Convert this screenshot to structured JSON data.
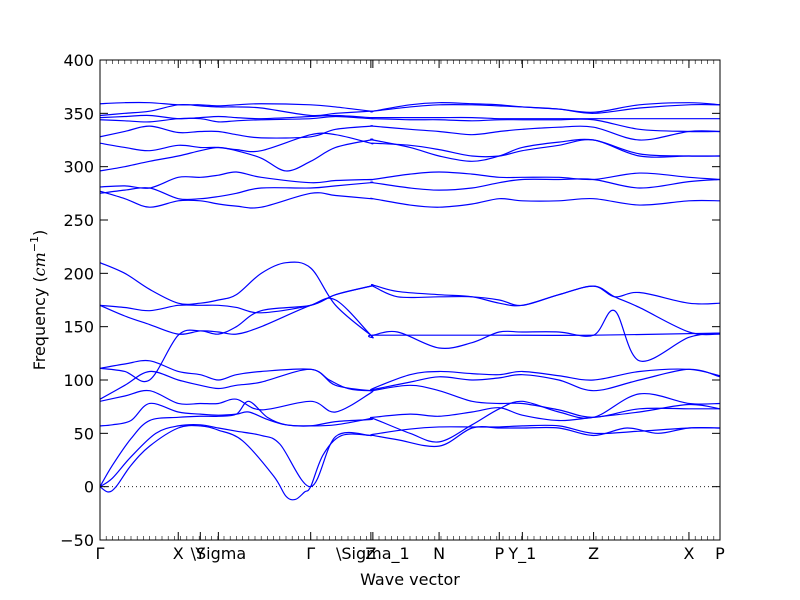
{
  "chart_data": {
    "type": "line",
    "title": "",
    "xlabel": "Wave vector",
    "ylabel_text": "Frequency (",
    "ylabel_unit": "cm",
    "ylabel_exp": "−1",
    "ylabel_close": ")",
    "ylim": [
      -50,
      400
    ],
    "yticks": [
      -50,
      0,
      50,
      100,
      150,
      200,
      250,
      300,
      350,
      400
    ],
    "xlim": [
      0,
      1
    ],
    "high_symmetry_points": [
      {
        "label": "Γ",
        "x": 0.0
      },
      {
        "label": "X",
        "x": 0.1262
      },
      {
        "label": "Y",
        "x": 0.1618
      },
      {
        "label": "\\Sigma",
        "x": 0.1909
      },
      {
        "label": "Γ",
        "x": 0.3398
      },
      {
        "label": "Z",
        "x": 0.4369
      },
      {
        "label": "\\Sigma_1",
        "x": 0.4401
      },
      {
        "label": "N",
        "x": 0.5469
      },
      {
        "label": "P",
        "x": 0.644
      },
      {
        "label": "Y_1",
        "x": 0.6812
      },
      {
        "label": "Z",
        "x": 0.7961
      },
      {
        "label": "X",
        "x": 0.9499
      },
      {
        "label": "P",
        "x": 1.0
      }
    ],
    "minor_tick_count": 100,
    "zero_line": {
      "y": 0,
      "style": "dotted"
    },
    "line_color": "#0000ff",
    "series": [
      {
        "x": [
          0,
          0.013,
          0.026,
          0.05,
          0.08,
          0.1262,
          0.1618,
          0.1909,
          0.23,
          0.28,
          0.3,
          0.315,
          0.33,
          0.3398,
          0.36,
          0.39,
          0.4369,
          0.4401,
          0.48,
          0.5469,
          0.6,
          0.644,
          0.6812,
          0.74,
          0.7961,
          0.85,
          0.9,
          0.9499,
          1.0
        ],
        "y": [
          0,
          -5,
          0,
          20,
          38,
          55,
          57,
          53,
          43,
          10,
          -9,
          -12,
          -5,
          0,
          30,
          48,
          48,
          48,
          44,
          38,
          55,
          55,
          55,
          55,
          48,
          55,
          50,
          55,
          55
        ]
      },
      {
        "x": [
          0,
          0.02,
          0.05,
          0.09,
          0.1262,
          0.1618,
          0.1909,
          0.22,
          0.26,
          0.29,
          0.3398,
          0.38,
          0.4369,
          0.4401,
          0.5,
          0.5469,
          0.6,
          0.644,
          0.6812,
          0.74,
          0.7961,
          0.87,
          0.9499,
          1.0
        ],
        "y": [
          0,
          8,
          28,
          50,
          57,
          58,
          55,
          52,
          48,
          40,
          0,
          47,
          48,
          49,
          54,
          56,
          56,
          56,
          57,
          57,
          50,
          52,
          55,
          55
        ]
      },
      {
        "x": [
          0,
          0.02,
          0.05,
          0.08,
          0.1262,
          0.1618,
          0.1909,
          0.22,
          0.24,
          0.27,
          0.3,
          0.3398,
          0.38,
          0.4369,
          0.4401,
          0.5,
          0.5469,
          0.6,
          0.644,
          0.6812,
          0.74,
          0.7961,
          0.87,
          0.9499,
          1.0
        ],
        "y": [
          0,
          20,
          45,
          62,
          65,
          66,
          66,
          68,
          80,
          65,
          58,
          57,
          58,
          64,
          65,
          68,
          66,
          70,
          74,
          67,
          62,
          65,
          70,
          77,
          73
        ]
      },
      {
        "x": [
          0,
          0.02,
          0.05,
          0.08,
          0.1262,
          0.1618,
          0.1909,
          0.22,
          0.24,
          0.27,
          0.3,
          0.3398,
          0.38,
          0.4369,
          0.4401,
          0.5,
          0.5469,
          0.6,
          0.644,
          0.6812,
          0.74,
          0.7961,
          0.87,
          0.9499,
          1.0
        ],
        "y": [
          57,
          58,
          62,
          78,
          70,
          68,
          67,
          68,
          70,
          63,
          58,
          57,
          61,
          63,
          64,
          50,
          42,
          58,
          73,
          80,
          70,
          65,
          87,
          78,
          78
        ]
      },
      {
        "x": [
          0,
          0.04,
          0.08,
          0.1262,
          0.1618,
          0.1909,
          0.22,
          0.26,
          0.3398,
          0.38,
          0.4369,
          0.4401,
          0.5,
          0.5469,
          0.6,
          0.644,
          0.6812,
          0.74,
          0.7961,
          0.87,
          0.9499,
          1.0
        ],
        "y": [
          80,
          85,
          90,
          78,
          78,
          78,
          82,
          72,
          80,
          70,
          88,
          90,
          95,
          90,
          80,
          78,
          78,
          72,
          65,
          73,
          73,
          73
        ]
      },
      {
        "x": [
          0,
          0.04,
          0.08,
          0.1262,
          0.1618,
          0.1909,
          0.22,
          0.26,
          0.3398,
          0.38,
          0.4369,
          0.4401,
          0.5,
          0.5469,
          0.6,
          0.644,
          0.6812,
          0.74,
          0.7961,
          0.87,
          0.9499,
          1.0
        ],
        "y": [
          82,
          95,
          108,
          100,
          95,
          92,
          95,
          98,
          110,
          95,
          90,
          91,
          98,
          103,
          100,
          102,
          105,
          100,
          90,
          100,
          110,
          103
        ]
      },
      {
        "x": [
          0,
          0.04,
          0.08,
          0.1262,
          0.1618,
          0.1909,
          0.22,
          0.26,
          0.3398,
          0.37,
          0.4,
          0.4369,
          0.4401,
          0.5,
          0.5469,
          0.6,
          0.644,
          0.6812,
          0.74,
          0.7961,
          0.87,
          0.9499,
          1.0
        ],
        "y": [
          111,
          115,
          118,
          108,
          105,
          100,
          105,
          108,
          110,
          100,
          92,
          90,
          92,
          105,
          108,
          106,
          105,
          108,
          104,
          100,
          108,
          110,
          104
        ]
      },
      {
        "x": [
          0,
          0.04,
          0.08,
          0.1262,
          0.1618,
          0.1909,
          0.22,
          0.26,
          0.3398,
          0.38,
          0.4369,
          0.4401,
          0.48,
          0.5469,
          0.6,
          0.644,
          0.6812,
          0.74,
          0.7961,
          0.83,
          0.87,
          0.9499,
          1.0
        ],
        "y": [
          111,
          108,
          100,
          142,
          146,
          143,
          150,
          165,
          170,
          180,
          188,
          189,
          183,
          180,
          178,
          172,
          170,
          180,
          188,
          178,
          168,
          145,
          143
        ]
      },
      {
        "x": [
          0,
          0.04,
          0.08,
          0.1262,
          0.1618,
          0.1909,
          0.22,
          0.26,
          0.3398,
          0.38,
          0.4369,
          0.4401,
          0.48,
          0.5469,
          0.6,
          0.644,
          0.6812,
          0.74,
          0.7961,
          0.83,
          0.87,
          0.9499,
          1.0
        ],
        "y": [
          170,
          160,
          152,
          143,
          146,
          145,
          143,
          150,
          170,
          175,
          142,
          142,
          145,
          130,
          135,
          145,
          145,
          145,
          142,
          165,
          118,
          140,
          144
        ]
      },
      {
        "x": [
          0,
          0.04,
          0.08,
          0.1262,
          0.1618,
          0.1909,
          0.22,
          0.26,
          0.3398,
          0.38,
          0.4369,
          0.4401,
          0.48,
          0.5469,
          0.6,
          0.644,
          0.6812,
          0.74,
          0.7961,
          0.83,
          0.87,
          0.9499,
          1.0
        ],
        "y": [
          170,
          168,
          165,
          170,
          170,
          170,
          168,
          163,
          170,
          180,
          188,
          188,
          178,
          178,
          178,
          175,
          170,
          180,
          188,
          178,
          182,
          172,
          172
        ]
      },
      {
        "x": [
          0,
          0.04,
          0.08,
          0.1262,
          0.1618,
          0.1909,
          0.22,
          0.26,
          0.3,
          0.3398,
          0.38,
          0.4369,
          0.4401,
          0.5469,
          0.644,
          0.7961,
          1.0
        ],
        "y": [
          210,
          200,
          185,
          172,
          172,
          175,
          180,
          200,
          210,
          205,
          170,
          142,
          142,
          142,
          142,
          142,
          144
        ]
      },
      {
        "x": [
          0,
          0.04,
          0.08,
          0.1262,
          0.1618,
          0.1909,
          0.22,
          0.26,
          0.3398,
          0.38,
          0.4369,
          0.4401,
          0.5,
          0.5469,
          0.6,
          0.644,
          0.6812,
          0.74,
          0.7961,
          0.87,
          0.9499,
          1.0
        ],
        "y": [
          277,
          270,
          262,
          268,
          268,
          265,
          263,
          262,
          275,
          273,
          270,
          270,
          264,
          262,
          265,
          270,
          268,
          268,
          270,
          264,
          268,
          268
        ]
      },
      {
        "x": [
          0,
          0.04,
          0.08,
          0.1262,
          0.1618,
          0.1909,
          0.22,
          0.26,
          0.3398,
          0.38,
          0.4369,
          0.4401,
          0.5,
          0.5469,
          0.6,
          0.644,
          0.6812,
          0.74,
          0.7961,
          0.87,
          0.9499,
          1.0
        ],
        "y": [
          275,
          278,
          280,
          270,
          270,
          272,
          275,
          280,
          280,
          282,
          285,
          285,
          280,
          278,
          280,
          285,
          288,
          288,
          288,
          280,
          286,
          288
        ]
      },
      {
        "x": [
          0,
          0.04,
          0.08,
          0.1262,
          0.1618,
          0.1909,
          0.22,
          0.26,
          0.3398,
          0.38,
          0.4369,
          0.4401,
          0.5,
          0.5469,
          0.6,
          0.644,
          0.6812,
          0.74,
          0.7961,
          0.87,
          0.9499,
          1.0
        ],
        "y": [
          281,
          282,
          280,
          290,
          290,
          292,
          295,
          290,
          285,
          287,
          288,
          288,
          293,
          295,
          293,
          290,
          290,
          290,
          288,
          294,
          290,
          288
        ]
      },
      {
        "x": [
          0,
          0.04,
          0.08,
          0.1262,
          0.1618,
          0.1909,
          0.22,
          0.26,
          0.3,
          0.3398,
          0.38,
          0.4369,
          0.4401,
          0.5,
          0.5469,
          0.6,
          0.644,
          0.6812,
          0.74,
          0.7961,
          0.87,
          0.9499,
          1.0
        ],
        "y": [
          296,
          300,
          305,
          310,
          315,
          318,
          315,
          308,
          296,
          305,
          318,
          325,
          325,
          318,
          310,
          305,
          310,
          318,
          323,
          325,
          312,
          310,
          310
        ]
      },
      {
        "x": [
          0,
          0.04,
          0.08,
          0.1262,
          0.1618,
          0.1909,
          0.22,
          0.26,
          0.3398,
          0.38,
          0.4369,
          0.4401,
          0.5,
          0.5469,
          0.6,
          0.644,
          0.6812,
          0.74,
          0.7961,
          0.87,
          0.9499,
          1.0
        ],
        "y": [
          322,
          318,
          315,
          320,
          318,
          318,
          316,
          315,
          330,
          330,
          322,
          322,
          320,
          316,
          310,
          310,
          315,
          320,
          325,
          310,
          310,
          310
        ]
      },
      {
        "x": [
          0,
          0.04,
          0.08,
          0.1262,
          0.1618,
          0.1909,
          0.22,
          0.26,
          0.3398,
          0.38,
          0.4369,
          0.4401,
          0.5,
          0.5469,
          0.6,
          0.644,
          0.6812,
          0.74,
          0.7961,
          0.87,
          0.9499,
          1.0
        ],
        "y": [
          328,
          333,
          338,
          332,
          333,
          333,
          330,
          327,
          328,
          335,
          338,
          338,
          335,
          333,
          330,
          333,
          335,
          337,
          337,
          325,
          333,
          333
        ]
      },
      {
        "x": [
          0,
          0.04,
          0.08,
          0.1262,
          0.1618,
          0.1909,
          0.22,
          0.26,
          0.3398,
          0.38,
          0.4369,
          0.4401,
          0.5,
          0.5469,
          0.6,
          0.644,
          0.6812,
          0.74,
          0.7961,
          0.87,
          0.9499,
          1.0
        ],
        "y": [
          344,
          343,
          342,
          345,
          345,
          342,
          343,
          344,
          345,
          347,
          345,
          345,
          344,
          344,
          343,
          344,
          344,
          344,
          344,
          335,
          333,
          333
        ]
      },
      {
        "x": [
          0,
          0.04,
          0.08,
          0.1262,
          0.1618,
          0.1909,
          0.22,
          0.26,
          0.3398,
          0.38,
          0.4369,
          0.4401,
          0.5,
          0.5469,
          0.6,
          0.644,
          0.6812,
          0.74,
          0.7961,
          0.87,
          0.9499,
          1.0
        ],
        "y": [
          346,
          347,
          348,
          345,
          346,
          347,
          346,
          345,
          347,
          348,
          346,
          346,
          346,
          346,
          346,
          345,
          345,
          345,
          345,
          345,
          345,
          345
        ]
      },
      {
        "x": [
          0,
          0.04,
          0.08,
          0.1262,
          0.1618,
          0.1909,
          0.22,
          0.26,
          0.3398,
          0.38,
          0.4369,
          0.4401,
          0.5,
          0.5469,
          0.6,
          0.644,
          0.6812,
          0.74,
          0.7961,
          0.87,
          0.9499,
          1.0
        ],
        "y": [
          348,
          350,
          352,
          358,
          357,
          356,
          356,
          355,
          348,
          350,
          352,
          352,
          356,
          358,
          358,
          357,
          356,
          354,
          350,
          355,
          358,
          358
        ]
      },
      {
        "x": [
          0,
          0.04,
          0.08,
          0.1262,
          0.1618,
          0.1909,
          0.22,
          0.26,
          0.3398,
          0.38,
          0.4369,
          0.4401,
          0.5,
          0.5469,
          0.6,
          0.644,
          0.6812,
          0.74,
          0.7961,
          0.87,
          0.9499,
          1.0
        ],
        "y": [
          359,
          360,
          360,
          358,
          358,
          357,
          358,
          359,
          358,
          356,
          352,
          352,
          358,
          360,
          359,
          358,
          356,
          354,
          351,
          358,
          360,
          358
        ]
      }
    ]
  }
}
